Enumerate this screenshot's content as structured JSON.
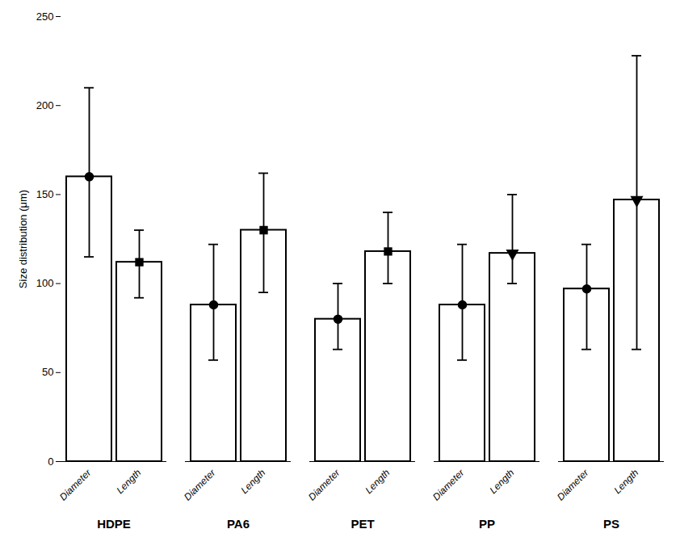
{
  "chart_data": {
    "type": "bar",
    "ylabel": "Size distribution (μm)",
    "categories": [
      "HDPE",
      "PA6",
      "PET",
      "PP",
      "PS"
    ],
    "series": [
      {
        "name": "Diameter",
        "values": [
          160,
          88,
          80,
          88,
          97
        ],
        "errors_upper": [
          50,
          34,
          20,
          34,
          25
        ],
        "errors_lower": [
          45,
          31,
          17,
          31,
          34
        ],
        "marker": [
          "circle",
          "circle",
          "circle",
          "circle",
          "circle"
        ]
      },
      {
        "name": "Length",
        "values": [
          112,
          130,
          118,
          117,
          147
        ],
        "errors_upper": [
          18,
          32,
          22,
          33,
          81
        ],
        "errors_lower": [
          20,
          35,
          18,
          17,
          84
        ],
        "marker": [
          "square",
          "square",
          "square",
          "triangle-down",
          "triangle-down"
        ]
      }
    ],
    "color": "white",
    "ylim": [
      0,
      250
    ],
    "yticks": [
      0,
      50,
      100,
      150,
      200,
      250
    ],
    "grid": false
  }
}
